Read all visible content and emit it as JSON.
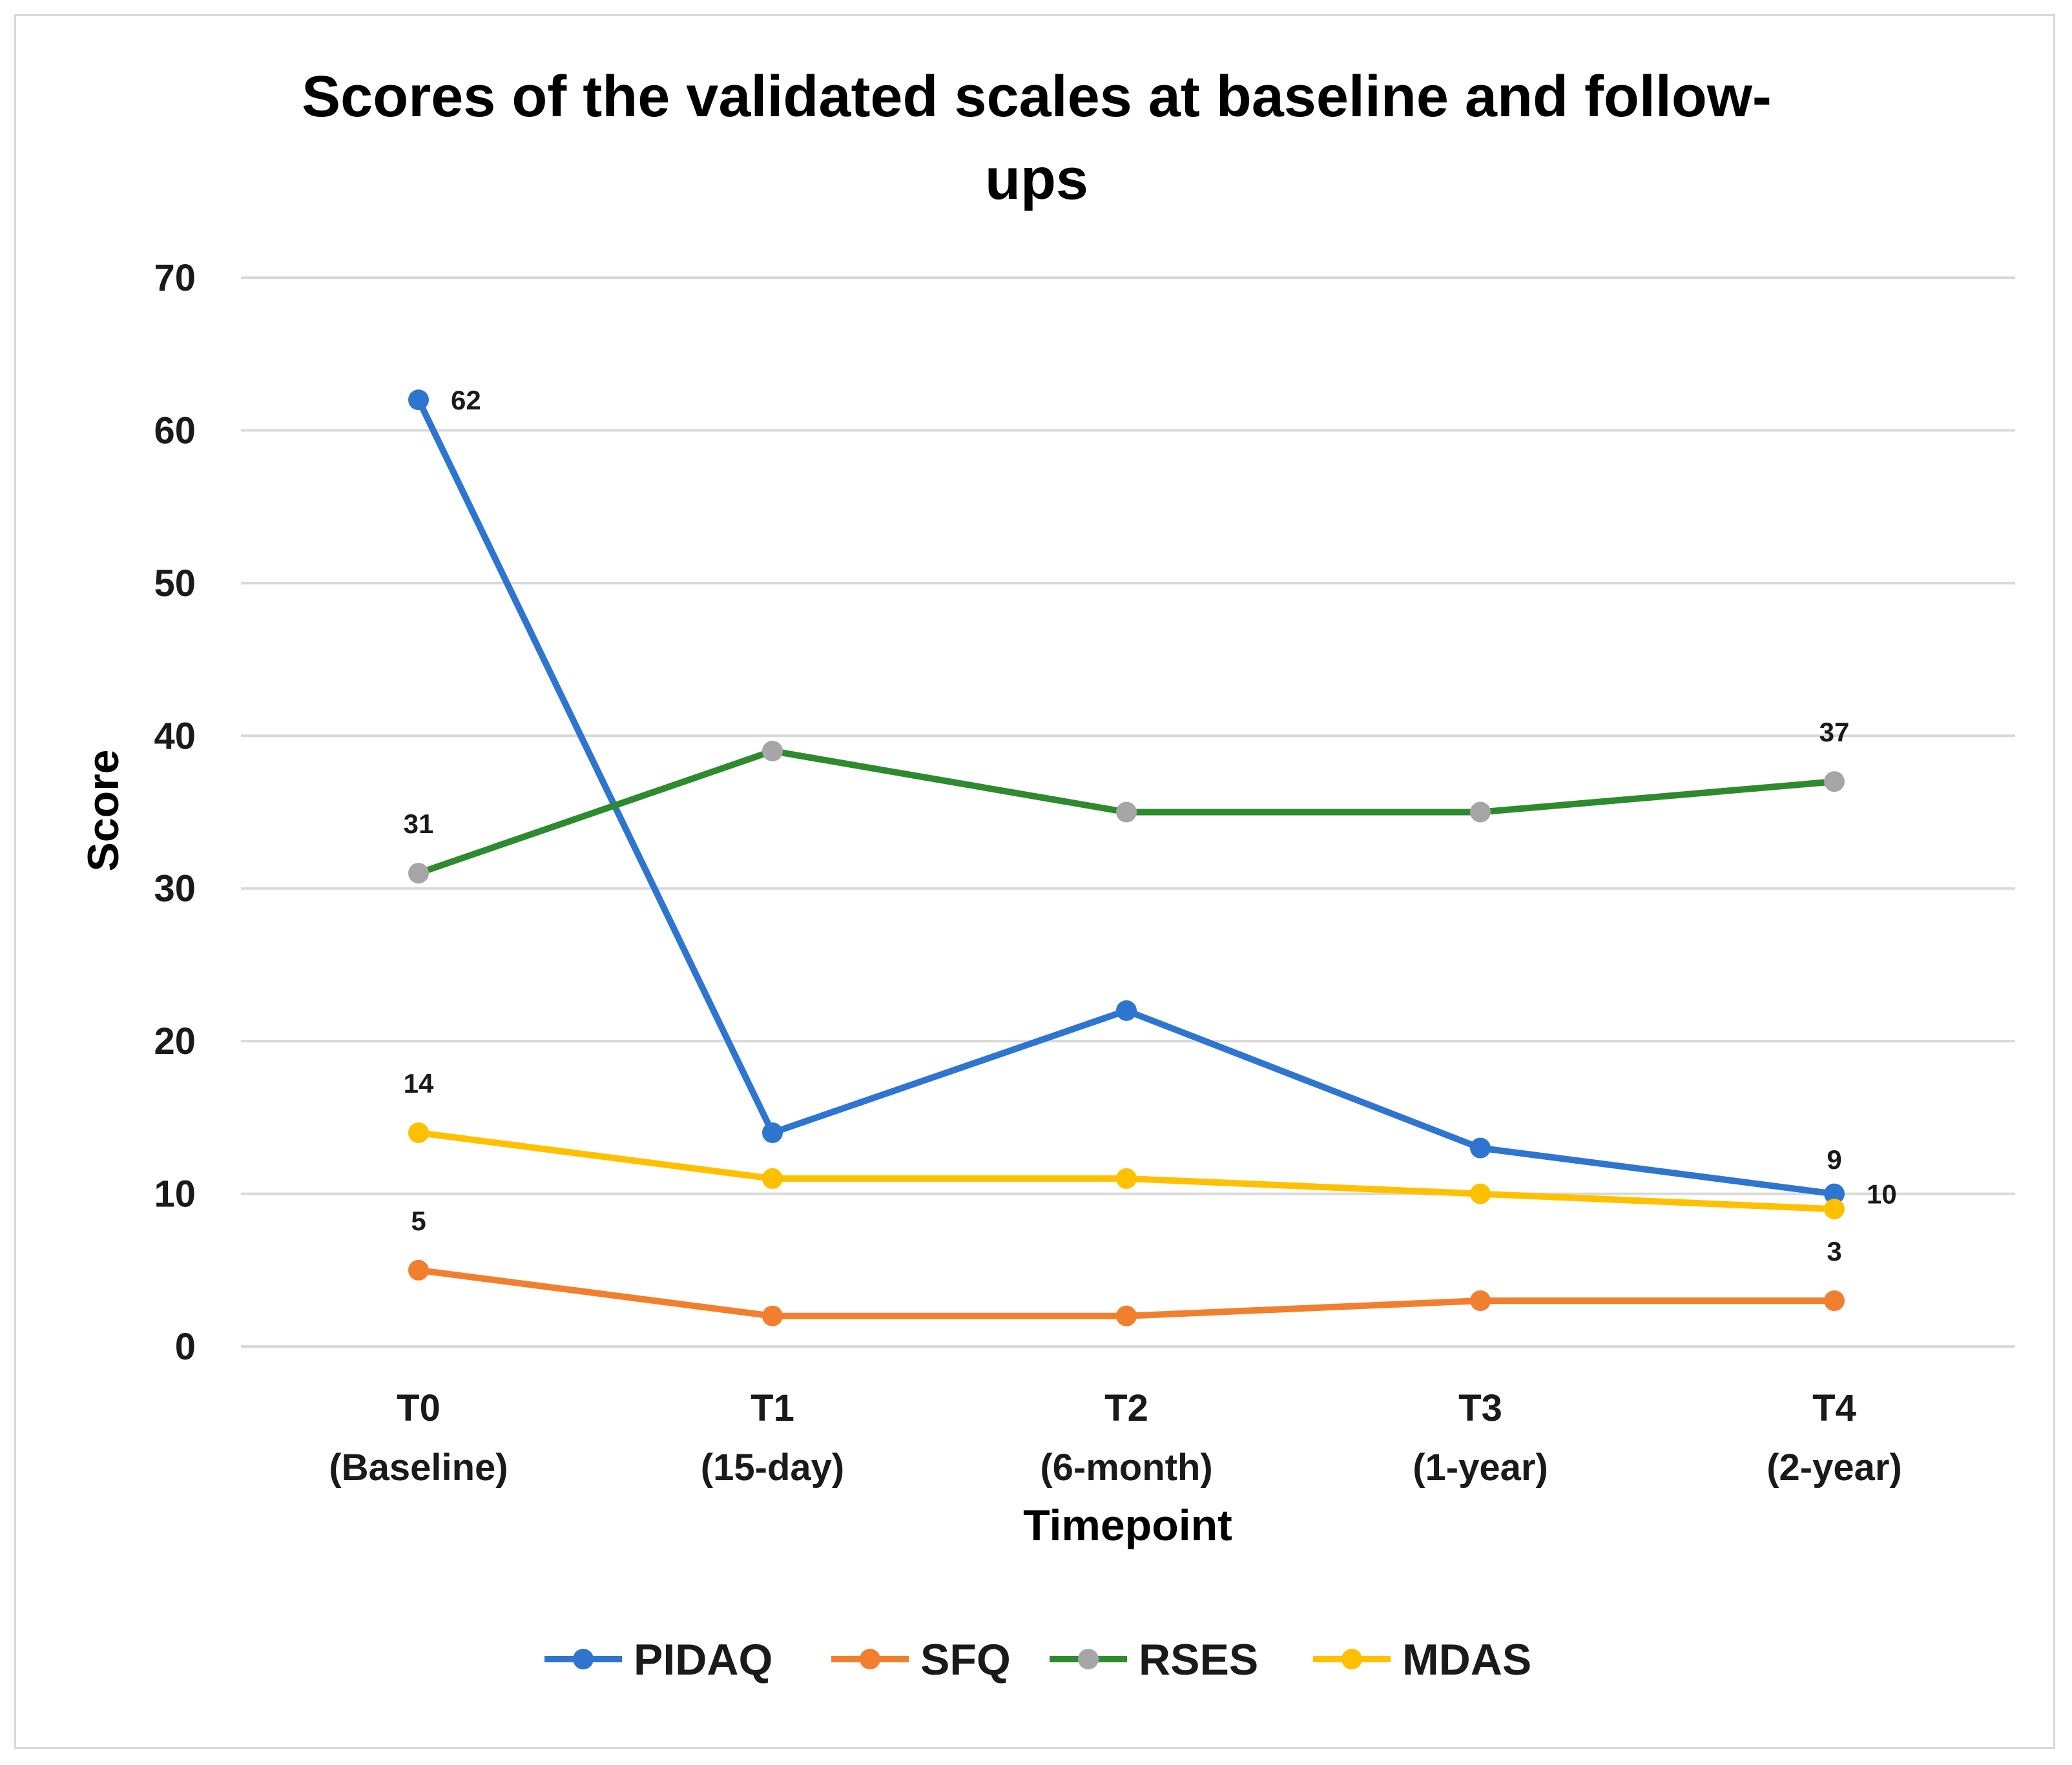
{
  "chart_data": {
    "type": "line",
    "title_lines": [
      "Scores of the validated scales at baseline and follow-",
      "ups"
    ],
    "xlabel": "Timepoint",
    "ylabel": "Score",
    "ylim": [
      0,
      70
    ],
    "yticks": [
      0,
      10,
      20,
      30,
      40,
      50,
      60,
      70
    ],
    "grid": true,
    "legend_position": "bottom",
    "categories": [
      [
        "T0",
        "(Baseline)"
      ],
      [
        "T1",
        "(15-day)"
      ],
      [
        "T2",
        "(6-month)"
      ],
      [
        "T3",
        "(1-year)"
      ],
      [
        "T4",
        "(2-year)"
      ]
    ],
    "series": [
      {
        "name": "PIDAQ",
        "line_color": "#2e75d0",
        "marker_color": "#2e75d0",
        "values": [
          62,
          14,
          22,
          13,
          10
        ],
        "labels": [
          {
            "index": 0,
            "text": "62",
            "pos": "right"
          },
          {
            "index": 4,
            "text": "10",
            "pos": "right"
          }
        ]
      },
      {
        "name": "SFQ",
        "line_color": "#f27f2e",
        "marker_color": "#f27f2e",
        "values": [
          5,
          2,
          2,
          3,
          3
        ],
        "labels": [
          {
            "index": 0,
            "text": "5",
            "pos": "above"
          },
          {
            "index": 4,
            "text": "3",
            "pos": "above"
          }
        ]
      },
      {
        "name": "RSES",
        "line_color": "#2e8a2e",
        "marker_color": "#a6a6a6",
        "values": [
          31,
          39,
          35,
          35,
          37
        ],
        "labels": [
          {
            "index": 0,
            "text": "31",
            "pos": "above"
          },
          {
            "index": 4,
            "text": "37",
            "pos": "above"
          }
        ]
      },
      {
        "name": "MDAS",
        "line_color": "#ffc000",
        "marker_color": "#ffc000",
        "values": [
          14,
          11,
          11,
          10,
          9
        ],
        "labels": [
          {
            "index": 0,
            "text": "14",
            "pos": "above"
          },
          {
            "index": 4,
            "text": "9",
            "pos": "above"
          }
        ]
      }
    ]
  }
}
